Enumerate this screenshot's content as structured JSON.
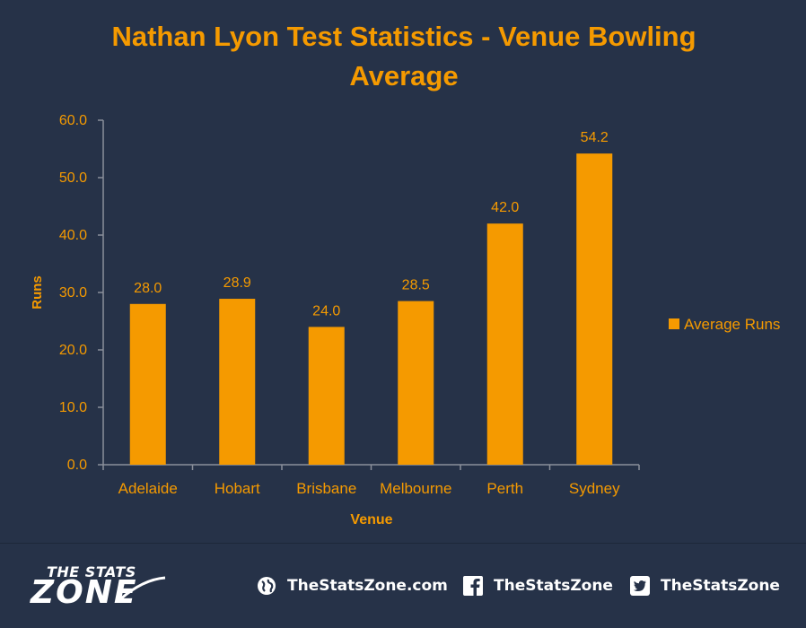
{
  "chart_data": {
    "type": "bar",
    "title": "Nathan Lyon Test Statistics - Venue Bowling Average",
    "title_lines": [
      "Nathan Lyon Test Statistics - Venue Bowling",
      "Average"
    ],
    "xlabel": "Venue",
    "ylabel": "Runs",
    "categories": [
      "Adelaide",
      "Hobart",
      "Brisbane",
      "Melbourne",
      "Perth",
      "Sydney"
    ],
    "series": [
      {
        "name": "Average Runs",
        "values": [
          28.0,
          28.9,
          24.0,
          28.5,
          42.0,
          54.2
        ]
      }
    ],
    "data_labels": [
      "28.0",
      "28.9",
      "24.0",
      "28.5",
      "42.0",
      "54.2"
    ],
    "ylim": [
      0,
      60
    ],
    "yticks": [
      "0.0",
      "10.0",
      "20.0",
      "30.0",
      "40.0",
      "50.0",
      "60.0"
    ],
    "grid": false,
    "legend_position": "right",
    "colors": {
      "bar": "#f59a00",
      "text": "#f59a00",
      "axis": "#8a8f9a",
      "background": "#263248"
    }
  },
  "footer": {
    "logo_top": "THE STATS",
    "logo_main": "ZONE",
    "website": "TheStatsZone.com",
    "facebook": "TheStatsZone",
    "twitter": "TheStatsZone",
    "icons": [
      "globe-icon",
      "facebook-icon",
      "twitter-icon"
    ]
  }
}
